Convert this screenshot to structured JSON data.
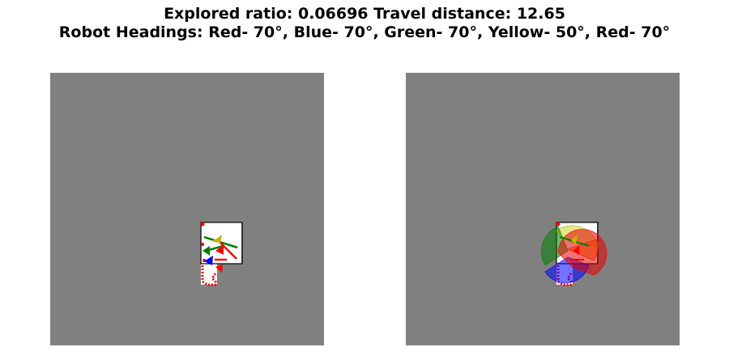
{
  "title": {
    "line1": "Explored ratio: 0.06696  Travel distance: 12.65",
    "line2": "Robot Headings: Red- 70°, Blue- 70°, Green- 70°, Yellow- 50°, Red- 70°"
  },
  "colors": {
    "background": "#808080",
    "explored": "#ffffff",
    "red": "#ff0000",
    "blue": "#0000ff",
    "green": "#008000",
    "yellow": "#c8b400",
    "orange": "#ff8000"
  }
}
